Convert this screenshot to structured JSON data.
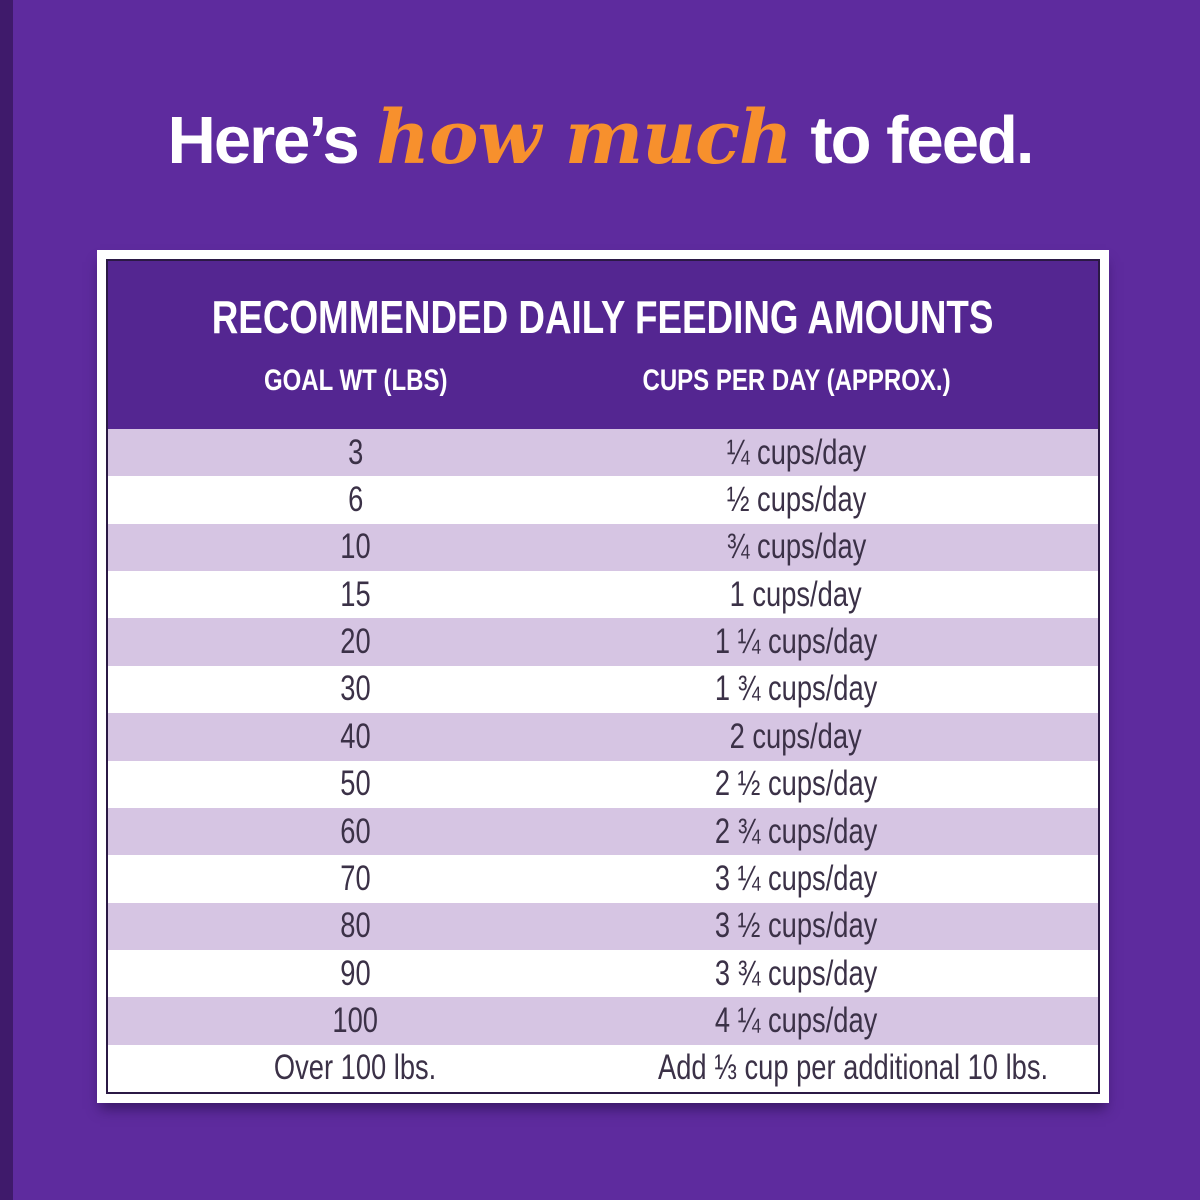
{
  "colors": {
    "background_purple": "#5e2b9e",
    "edge_strip_purple": "#3f1a6b",
    "header_purple": "#542691",
    "shaded_row_lavender": "#d6c5e3",
    "plain_row_white": "#ffffff",
    "row_text": "#3b3147",
    "headline_white": "#ffffff",
    "headline_orange": "#f7902d"
  },
  "headline": {
    "part1": "Here’s",
    "part2": "how much",
    "part3": "to feed."
  },
  "table": {
    "title": "RECOMMENDED DAILY FEEDING AMOUNTS",
    "col1": "GOAL WT (LBS)",
    "col2": "CUPS PER DAY (APPROX.)",
    "rows": [
      {
        "goal_wt": "3",
        "cups_per_day": "¼ cups/day"
      },
      {
        "goal_wt": "6",
        "cups_per_day": "½ cups/day"
      },
      {
        "goal_wt": "10",
        "cups_per_day": "¾ cups/day"
      },
      {
        "goal_wt": "15",
        "cups_per_day": "1 cups/day"
      },
      {
        "goal_wt": "20",
        "cups_per_day": "1 ¼ cups/day"
      },
      {
        "goal_wt": "30",
        "cups_per_day": "1 ¾ cups/day"
      },
      {
        "goal_wt": "40",
        "cups_per_day": "2 cups/day"
      },
      {
        "goal_wt": "50",
        "cups_per_day": "2 ½ cups/day"
      },
      {
        "goal_wt": "60",
        "cups_per_day": "2 ¾ cups/day"
      },
      {
        "goal_wt": "70",
        "cups_per_day": "3 ¼ cups/day"
      },
      {
        "goal_wt": "80",
        "cups_per_day": "3 ½ cups/day"
      },
      {
        "goal_wt": "90",
        "cups_per_day": "3 ¾ cups/day"
      },
      {
        "goal_wt": "100",
        "cups_per_day": "4 ¼ cups/day"
      },
      {
        "goal_wt": "Over 100 lbs.",
        "cups_per_day": "Add ⅓ cup per additional 10 lbs."
      }
    ]
  },
  "chart_data": {
    "type": "table",
    "title": "RECOMMENDED DAILY FEEDING AMOUNTS",
    "columns": [
      "GOAL WT (LBS)",
      "CUPS PER DAY (APPROX.)"
    ],
    "rows": [
      [
        "3",
        "¼ cups/day"
      ],
      [
        "6",
        "½ cups/day"
      ],
      [
        "10",
        "¾ cups/day"
      ],
      [
        "15",
        "1 cups/day"
      ],
      [
        "20",
        "1 ¼ cups/day"
      ],
      [
        "30",
        "1 ¾ cups/day"
      ],
      [
        "40",
        "2 cups/day"
      ],
      [
        "50",
        "2 ½ cups/day"
      ],
      [
        "60",
        "2 ¾ cups/day"
      ],
      [
        "70",
        "3 ¼ cups/day"
      ],
      [
        "80",
        "3 ½ cups/day"
      ],
      [
        "90",
        "3 ¾ cups/day"
      ],
      [
        "100",
        "4 ¼ cups/day"
      ],
      [
        "Over 100 lbs.",
        "Add ⅓ cup per additional 10 lbs."
      ]
    ],
    "layout": {
      "row_striping": "alternating lavender/white starting lavender",
      "header_background": "purple",
      "border": "white frame with dark inner hairline"
    }
  }
}
